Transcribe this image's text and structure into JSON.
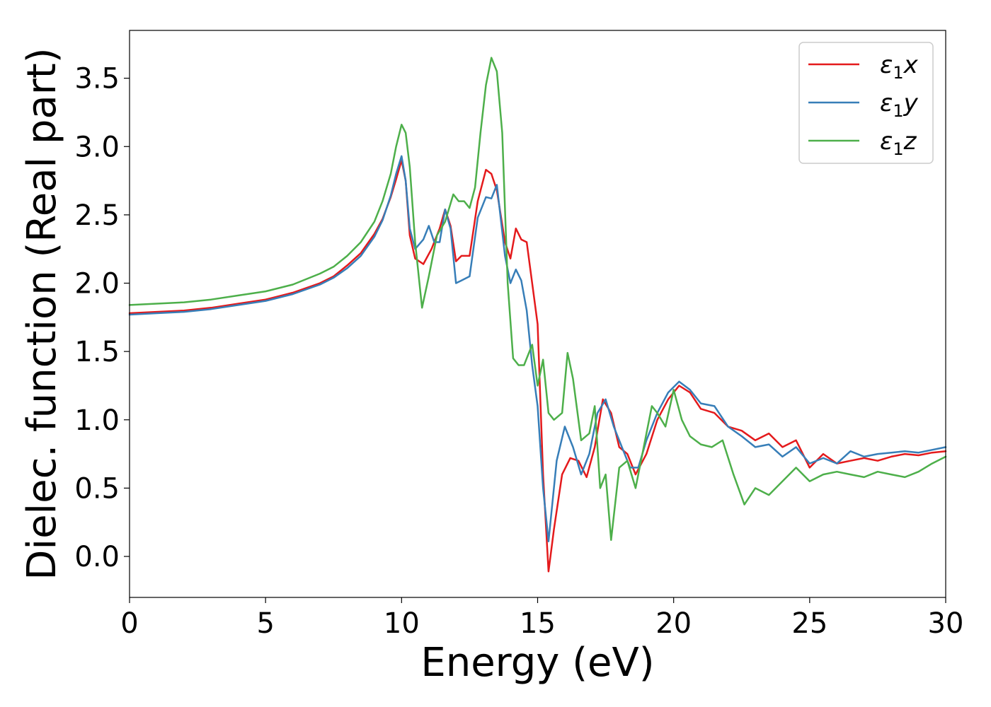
{
  "chart_data": {
    "type": "line",
    "title": "",
    "xlabel": "Energy (eV)",
    "ylabel": "Dielec. function (Real part)",
    "xlim": [
      0,
      30
    ],
    "ylim": [
      -0.3,
      3.85
    ],
    "xticks": [
      0,
      5,
      10,
      15,
      20,
      25,
      30
    ],
    "yticks": [
      0.0,
      0.5,
      1.0,
      1.5,
      2.0,
      2.5,
      3.0,
      3.5
    ],
    "xtick_labels": [
      "0",
      "5",
      "10",
      "15",
      "20",
      "25",
      "30"
    ],
    "ytick_labels": [
      "0.0",
      "0.5",
      "1.0",
      "1.5",
      "2.0",
      "2.5",
      "3.0",
      "3.5"
    ],
    "grid": false,
    "legend": "top-right",
    "series": [
      {
        "name": "ε₁x",
        "legend_main": "ε",
        "legend_sub": "1",
        "legend_suffix": "x",
        "color": "#e41a1c",
        "x": [
          0,
          1,
          2,
          3,
          4,
          5,
          6,
          7,
          7.5,
          8,
          8.5,
          9,
          9.3,
          9.6,
          9.8,
          10.0,
          10.15,
          10.3,
          10.5,
          10.8,
          11.1,
          11.4,
          11.6,
          11.8,
          12.0,
          12.2,
          12.5,
          12.8,
          13.1,
          13.3,
          13.5,
          13.8,
          14.0,
          14.2,
          14.4,
          14.6,
          14.8,
          15.0,
          15.2,
          15.4,
          15.6,
          15.9,
          16.2,
          16.5,
          16.8,
          17.1,
          17.4,
          17.7,
          18.0,
          18.3,
          18.6,
          19.0,
          19.4,
          19.8,
          20.2,
          20.6,
          21.0,
          21.5,
          22.0,
          22.5,
          23.0,
          23.5,
          24.0,
          24.5,
          25.0,
          25.5,
          26.0,
          26.5,
          27.0,
          27.5,
          28.0,
          28.5,
          29.0,
          29.5,
          30.0
        ],
        "y": [
          1.78,
          1.79,
          1.8,
          1.82,
          1.85,
          1.88,
          1.93,
          2.0,
          2.05,
          2.13,
          2.22,
          2.36,
          2.47,
          2.63,
          2.76,
          2.9,
          2.75,
          2.35,
          2.18,
          2.14,
          2.25,
          2.4,
          2.54,
          2.42,
          2.16,
          2.2,
          2.2,
          2.6,
          2.83,
          2.8,
          2.68,
          2.3,
          2.18,
          2.4,
          2.32,
          2.3,
          2.0,
          1.7,
          0.6,
          -0.11,
          0.2,
          0.6,
          0.72,
          0.7,
          0.58,
          0.8,
          1.15,
          1.05,
          0.8,
          0.75,
          0.6,
          0.75,
          1.0,
          1.15,
          1.25,
          1.2,
          1.08,
          1.05,
          0.95,
          0.92,
          0.85,
          0.9,
          0.8,
          0.85,
          0.65,
          0.75,
          0.68,
          0.7,
          0.72,
          0.7,
          0.73,
          0.75,
          0.74,
          0.76,
          0.77
        ]
      },
      {
        "name": "ε₁y",
        "legend_main": "ε",
        "legend_sub": "1",
        "legend_suffix": "y",
        "color": "#377eb8",
        "x": [
          0,
          1,
          2,
          3,
          4,
          5,
          6,
          7,
          7.5,
          8,
          8.5,
          9,
          9.3,
          9.6,
          9.8,
          10.0,
          10.15,
          10.3,
          10.5,
          10.8,
          11.0,
          11.2,
          11.4,
          11.6,
          11.8,
          12.0,
          12.2,
          12.5,
          12.8,
          13.1,
          13.3,
          13.5,
          13.8,
          14.0,
          14.2,
          14.4,
          14.6,
          14.8,
          15.0,
          15.2,
          15.4,
          15.7,
          16.0,
          16.3,
          16.6,
          16.9,
          17.2,
          17.5,
          17.8,
          18.1,
          18.4,
          18.7,
          19.0,
          19.4,
          19.8,
          20.2,
          20.6,
          21.0,
          21.5,
          22.0,
          22.5,
          23.0,
          23.5,
          24.0,
          24.5,
          25.0,
          25.5,
          26.0,
          26.5,
          27.0,
          27.5,
          28.0,
          28.5,
          29.0,
          29.5,
          30.0
        ],
        "y": [
          1.77,
          1.78,
          1.79,
          1.81,
          1.84,
          1.87,
          1.92,
          1.99,
          2.04,
          2.11,
          2.2,
          2.34,
          2.46,
          2.64,
          2.8,
          2.93,
          2.75,
          2.4,
          2.25,
          2.32,
          2.42,
          2.3,
          2.3,
          2.54,
          2.4,
          2.0,
          2.02,
          2.05,
          2.48,
          2.63,
          2.62,
          2.72,
          2.2,
          2.0,
          2.1,
          2.02,
          1.8,
          1.4,
          1.1,
          0.5,
          0.11,
          0.7,
          0.95,
          0.8,
          0.6,
          0.75,
          1.05,
          1.15,
          0.95,
          0.8,
          0.65,
          0.65,
          0.85,
          1.05,
          1.2,
          1.28,
          1.22,
          1.12,
          1.1,
          0.95,
          0.88,
          0.8,
          0.82,
          0.73,
          0.8,
          0.68,
          0.72,
          0.68,
          0.77,
          0.73,
          0.75,
          0.76,
          0.77,
          0.76,
          0.78,
          0.8
        ]
      },
      {
        "name": "ε₁z",
        "legend_main": "ε",
        "legend_sub": "1",
        "legend_suffix": "z",
        "color": "#4daf4a",
        "x": [
          0,
          1,
          2,
          3,
          4,
          5,
          6,
          7,
          7.5,
          8,
          8.5,
          9,
          9.3,
          9.6,
          9.8,
          10.0,
          10.15,
          10.3,
          10.5,
          10.75,
          11.0,
          11.3,
          11.6,
          11.9,
          12.1,
          12.3,
          12.5,
          12.7,
          12.9,
          13.1,
          13.3,
          13.5,
          13.7,
          13.9,
          14.1,
          14.3,
          14.5,
          14.8,
          15.0,
          15.2,
          15.4,
          15.6,
          15.9,
          16.1,
          16.3,
          16.6,
          16.9,
          17.1,
          17.3,
          17.5,
          17.7,
          18.0,
          18.3,
          18.6,
          18.9,
          19.2,
          19.4,
          19.7,
          20.0,
          20.3,
          20.6,
          21.0,
          21.4,
          21.8,
          22.2,
          22.6,
          23.0,
          23.5,
          24.0,
          24.5,
          25.0,
          25.5,
          26.0,
          26.5,
          27.0,
          27.5,
          28.0,
          28.5,
          29.0,
          29.5,
          30.0
        ],
        "y": [
          1.84,
          1.85,
          1.86,
          1.88,
          1.91,
          1.94,
          1.99,
          2.07,
          2.12,
          2.2,
          2.3,
          2.45,
          2.6,
          2.8,
          3.0,
          3.16,
          3.1,
          2.85,
          2.3,
          1.82,
          2.05,
          2.35,
          2.45,
          2.65,
          2.6,
          2.6,
          2.55,
          2.7,
          3.1,
          3.45,
          3.65,
          3.55,
          3.1,
          2.0,
          1.45,
          1.4,
          1.4,
          1.55,
          1.25,
          1.44,
          1.05,
          1.0,
          1.05,
          1.49,
          1.3,
          0.85,
          0.9,
          1.1,
          0.5,
          0.6,
          0.12,
          0.65,
          0.7,
          0.5,
          0.8,
          1.1,
          1.05,
          0.95,
          1.22,
          1.0,
          0.88,
          0.82,
          0.8,
          0.85,
          0.6,
          0.38,
          0.5,
          0.45,
          0.55,
          0.65,
          0.55,
          0.6,
          0.62,
          0.6,
          0.58,
          0.62,
          0.6,
          0.58,
          0.62,
          0.68,
          0.73
        ]
      }
    ]
  }
}
